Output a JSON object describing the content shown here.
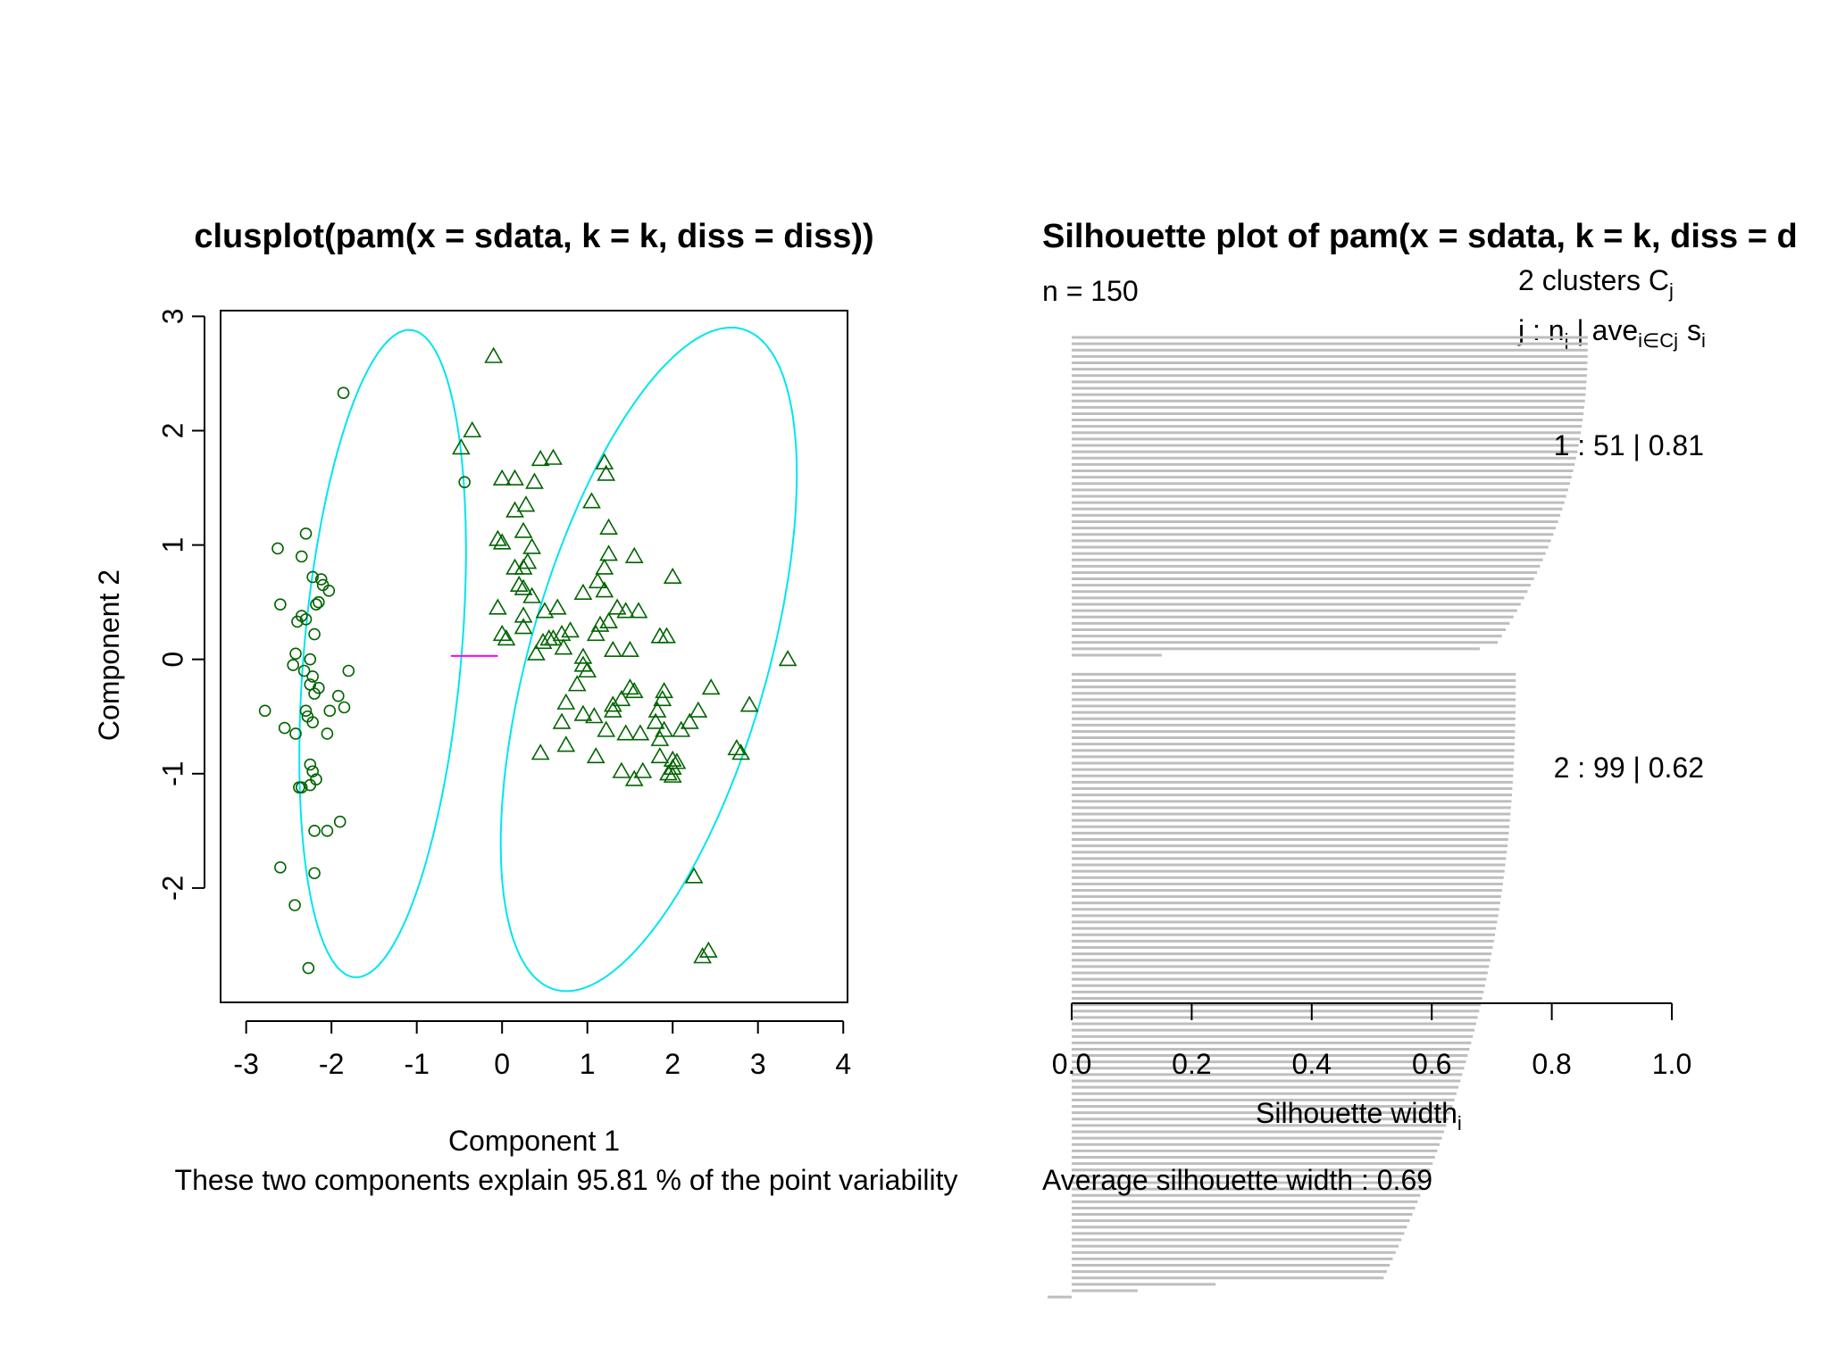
{
  "chart_data": [
    {
      "type": "scatter",
      "title": "clusplot(pam(x = sdata, k = k, diss = diss))",
      "xlabel": "Component 1",
      "ylabel": "Component 2",
      "subtitle": "These two components explain 95.81 % of the point variability",
      "xlim": [
        -3.3,
        4.05
      ],
      "ylim": [
        -3.0,
        3.05
      ],
      "xticks": [
        "-3",
        "-2",
        "-1",
        "0",
        "1",
        "2",
        "3",
        "4"
      ],
      "yticks": [
        "-2",
        "-1",
        "0",
        "1",
        "2",
        "3"
      ],
      "colors": {
        "points": "#006400",
        "ellipse": "#00e5ee",
        "segment": "#ff00ff"
      },
      "ellipses": [
        {
          "cx": -1.4,
          "cy": 0.05,
          "semi_major": 2.85,
          "semi_minor": 0.92,
          "angle_deg": 83
        },
        {
          "cx": 1.72,
          "cy": 0.0,
          "semi_major": 3.1,
          "semi_minor": 1.35,
          "angle_deg": 67
        }
      ],
      "segment": {
        "x1": -0.6,
        "y1": 0.03,
        "x2": -0.05,
        "y2": 0.03
      },
      "series": [
        {
          "marker": "circle",
          "points": [
            [
              -1.86,
              2.33
            ],
            [
              -0.44,
              1.55
            ],
            [
              -2.3,
              1.1
            ],
            [
              -2.63,
              0.97
            ],
            [
              -2.35,
              0.9
            ],
            [
              -2.22,
              0.72
            ],
            [
              -2.12,
              0.7
            ],
            [
              -2.1,
              0.65
            ],
            [
              -2.03,
              0.6
            ],
            [
              -2.15,
              0.5
            ],
            [
              -2.18,
              0.48
            ],
            [
              -2.6,
              0.48
            ],
            [
              -2.35,
              0.38
            ],
            [
              -2.4,
              0.33
            ],
            [
              -2.3,
              0.35
            ],
            [
              -2.2,
              0.22
            ],
            [
              -2.42,
              0.05
            ],
            [
              -2.25,
              0.0
            ],
            [
              -2.32,
              -0.1
            ],
            [
              -2.45,
              -0.05
            ],
            [
              -2.22,
              -0.15
            ],
            [
              -2.25,
              -0.22
            ],
            [
              -2.15,
              -0.25
            ],
            [
              -2.2,
              -0.3
            ],
            [
              -1.8,
              -0.1
            ],
            [
              -1.92,
              -0.32
            ],
            [
              -1.85,
              -0.42
            ],
            [
              -2.02,
              -0.45
            ],
            [
              -2.3,
              -0.45
            ],
            [
              -2.28,
              -0.5
            ],
            [
              -2.22,
              -0.55
            ],
            [
              -2.78,
              -0.45
            ],
            [
              -2.55,
              -0.6
            ],
            [
              -2.42,
              -0.65
            ],
            [
              -2.05,
              -0.65
            ],
            [
              -2.25,
              -0.92
            ],
            [
              -2.22,
              -0.98
            ],
            [
              -2.18,
              -1.05
            ],
            [
              -2.25,
              -1.1
            ],
            [
              -2.35,
              -1.12
            ],
            [
              -2.38,
              -1.12
            ],
            [
              -1.9,
              -1.42
            ],
            [
              -2.05,
              -1.5
            ],
            [
              -2.2,
              -1.5
            ],
            [
              -2.6,
              -1.82
            ],
            [
              -2.2,
              -1.87
            ],
            [
              -2.43,
              -2.15
            ],
            [
              -2.27,
              -2.7
            ]
          ]
        },
        {
          "marker": "triangle",
          "points": [
            [
              -0.1,
              2.65
            ],
            [
              -0.35,
              2.0
            ],
            [
              -0.48,
              1.85
            ],
            [
              0.45,
              1.75
            ],
            [
              0.6,
              1.76
            ],
            [
              1.2,
              1.72
            ],
            [
              1.22,
              1.62
            ],
            [
              0.38,
              1.55
            ],
            [
              0.0,
              1.58
            ],
            [
              0.15,
              1.58
            ],
            [
              1.05,
              1.38
            ],
            [
              0.15,
              1.3
            ],
            [
              0.28,
              1.35
            ],
            [
              0.25,
              1.12
            ],
            [
              1.25,
              1.15
            ],
            [
              -0.05,
              1.05
            ],
            [
              0.0,
              1.02
            ],
            [
              0.35,
              0.98
            ],
            [
              1.25,
              0.92
            ],
            [
              1.55,
              0.9
            ],
            [
              0.15,
              0.8
            ],
            [
              0.25,
              0.8
            ],
            [
              0.3,
              0.85
            ],
            [
              1.2,
              0.8
            ],
            [
              2.0,
              0.72
            ],
            [
              0.2,
              0.65
            ],
            [
              1.12,
              0.68
            ],
            [
              1.2,
              0.6
            ],
            [
              0.95,
              0.58
            ],
            [
              0.25,
              0.62
            ],
            [
              0.35,
              0.55
            ],
            [
              1.35,
              0.45
            ],
            [
              1.45,
              0.42
            ],
            [
              1.6,
              0.42
            ],
            [
              -0.05,
              0.45
            ],
            [
              0.25,
              0.38
            ],
            [
              0.5,
              0.42
            ],
            [
              0.65,
              0.45
            ],
            [
              1.15,
              0.3
            ],
            [
              1.25,
              0.33
            ],
            [
              0.25,
              0.28
            ],
            [
              0.55,
              0.18
            ],
            [
              0.7,
              0.22
            ],
            [
              0.8,
              0.25
            ],
            [
              1.1,
              0.22
            ],
            [
              1.85,
              0.2
            ],
            [
              1.93,
              0.2
            ],
            [
              0.05,
              0.18
            ],
            [
              0.0,
              0.22
            ],
            [
              0.48,
              0.15
            ],
            [
              0.6,
              0.18
            ],
            [
              0.4,
              0.05
            ],
            [
              0.72,
              0.1
            ],
            [
              0.95,
              0.02
            ],
            [
              1.3,
              0.08
            ],
            [
              1.5,
              0.08
            ],
            [
              0.95,
              -0.05
            ],
            [
              1.0,
              -0.1
            ],
            [
              0.88,
              -0.22
            ],
            [
              1.5,
              -0.25
            ],
            [
              1.55,
              -0.28
            ],
            [
              1.9,
              -0.28
            ],
            [
              2.45,
              -0.25
            ],
            [
              1.4,
              -0.35
            ],
            [
              1.3,
              -0.4
            ],
            [
              1.88,
              -0.35
            ],
            [
              0.75,
              -0.38
            ],
            [
              0.95,
              -0.48
            ],
            [
              1.08,
              -0.5
            ],
            [
              1.3,
              -0.45
            ],
            [
              1.82,
              -0.45
            ],
            [
              2.3,
              -0.45
            ],
            [
              2.9,
              -0.4
            ],
            [
              0.7,
              -0.55
            ],
            [
              1.8,
              -0.55
            ],
            [
              2.2,
              -0.55
            ],
            [
              1.22,
              -0.62
            ],
            [
              1.9,
              -0.62
            ],
            [
              2.1,
              -0.62
            ],
            [
              1.45,
              -0.65
            ],
            [
              1.62,
              -0.65
            ],
            [
              1.85,
              -0.7
            ],
            [
              0.75,
              -0.75
            ],
            [
              2.75,
              -0.78
            ],
            [
              2.8,
              -0.82
            ],
            [
              0.45,
              -0.82
            ],
            [
              1.1,
              -0.85
            ],
            [
              1.85,
              -0.85
            ],
            [
              2.0,
              -0.88
            ],
            [
              2.05,
              -0.9
            ],
            [
              2.0,
              -0.95
            ],
            [
              1.4,
              -0.98
            ],
            [
              1.65,
              -0.98
            ],
            [
              1.95,
              -1.0
            ],
            [
              2.0,
              -1.02
            ],
            [
              1.55,
              -1.05
            ],
            [
              3.35,
              0.0
            ],
            [
              2.25,
              -1.9
            ],
            [
              2.35,
              -2.6
            ],
            [
              2.42,
              -2.55
            ]
          ]
        }
      ]
    },
    {
      "type": "bar",
      "orientation": "horizontal",
      "title": "Silhouette plot of pam(x = sdata, k = k, diss = d",
      "xlabel": "Silhouette width",
      "xlabel_subscript": "i",
      "xlim": [
        0.0,
        1.0
      ],
      "xticks": [
        "0.0",
        "0.2",
        "0.4",
        "0.6",
        "0.8",
        "1.0"
      ],
      "n_label": "n = 150",
      "header_clusters": "2  clusters  C",
      "header_clusters_sub": "j",
      "header_cols": "j :  n",
      "header_cols_sub": "j",
      "header_ave": " | ave",
      "header_ave_sub": "i∈Cj",
      "header_s": "s",
      "header_s_sub": "i",
      "avg_label": "Average silhouette width :  0.69",
      "bar_color": "#bebebe",
      "clusters": [
        {
          "label": "1 :   51  |  0.81",
          "n": 51,
          "avg": 0.81,
          "max": 0.86,
          "min": 0.15,
          "tail": [
            0.68,
            0.15
          ]
        },
        {
          "label": "2 :   99  |  0.62",
          "n": 99,
          "avg": 0.62,
          "max": 0.74,
          "min": -0.04,
          "tail": [
            0.24,
            0.11,
            -0.04
          ]
        }
      ]
    }
  ]
}
